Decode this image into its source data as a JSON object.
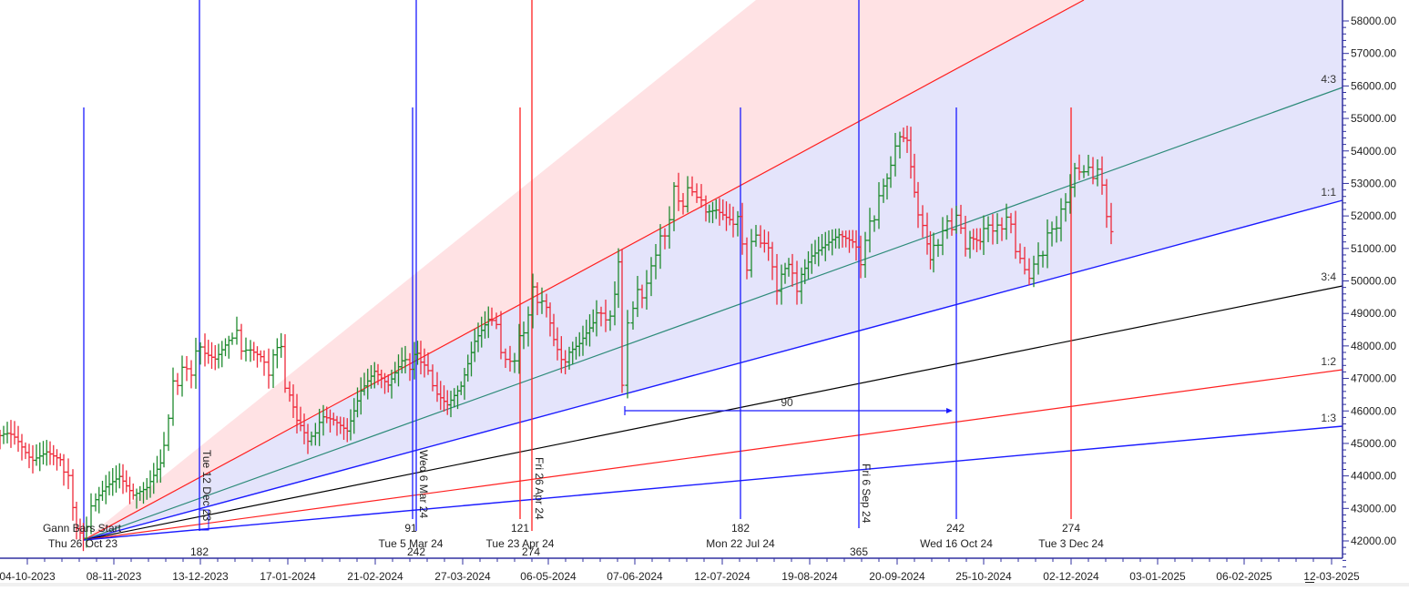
{
  "chart_data": {
    "type": "bar",
    "subtype": "ohlc-with-gann-fan",
    "title": "",
    "xlabel": "",
    "ylabel": "",
    "ylim": [
      41500,
      59000
    ],
    "grid": false,
    "y_ticks": [
      "58000.00",
      "57000.00",
      "56000.00",
      "55000.00",
      "54000.00",
      "53000.00",
      "52000.00",
      "51000.00",
      "50000.00",
      "49000.00",
      "48000.00",
      "47000.00",
      "46000.00",
      "45000.00",
      "44000.00",
      "43000.00",
      "42000.00"
    ],
    "x_ticks": [
      "04-10-2023",
      "08-11-2023",
      "13-12-2023",
      "17-01-2024",
      "21-02-2024",
      "27-03-2024",
      "06-05-2024",
      "07-06-2024",
      "12-07-2024",
      "19-08-2024",
      "20-09-2024",
      "25-10-2024",
      "02-12-2024",
      "03-01-2025",
      "06-02-2025",
      "12-03-2025"
    ],
    "gann_fan": {
      "origin_label": "Gann Bars Start",
      "origin_date": "Thu 26 Oct 23",
      "lines": [
        {
          "ratio": "4:3",
          "color": "#2e8b7a",
          "end_value": 56000
        },
        {
          "ratio": "1:1",
          "color": "#1a1aff",
          "end_value": 52450
        },
        {
          "ratio": "3:4",
          "color": "#000000",
          "end_value": 49850
        },
        {
          "ratio": "1:2",
          "color": "#ff2020",
          "end_value": 47250
        },
        {
          "ratio": "1:3",
          "color": "#1a1aff",
          "end_value": 45500
        }
      ],
      "upper_line": {
        "color": "#ff2020"
      }
    },
    "time_cycles": [
      {
        "label": "Tue 12 Dec 23",
        "bars": "",
        "color": "#1a1aff",
        "orientation": "vertical"
      },
      {
        "label": "Tue 5 Mar 24",
        "bars": "91",
        "color": "#1a1aff"
      },
      {
        "label": "Wed 6 Mar 24",
        "bars": "",
        "color": "#1a1aff",
        "orientation": "vertical"
      },
      {
        "label": "Tue 23 Apr 24",
        "bars": "121",
        "color": "#ff2020"
      },
      {
        "label": "Fri 26 Apr 24",
        "bars": "",
        "color": "#ff2020",
        "orientation": "vertical"
      },
      {
        "label": "Mon 22 Jul 24",
        "bars": "182",
        "color": "#1a1aff"
      },
      {
        "label": "Fri 6 Sep 24",
        "bars": "",
        "color": "#1a1aff",
        "orientation": "vertical"
      },
      {
        "label": "Wed 16 Oct 24",
        "bars": "242",
        "color": "#1a1aff"
      },
      {
        "label": "Tue 3 Dec 24",
        "bars": "274",
        "color": "#ff2020"
      }
    ],
    "calendar_counts": [
      "182",
      "242",
      "274",
      "365"
    ],
    "annotation": {
      "label": "90",
      "type": "horizontal-arrow"
    },
    "series": [
      {
        "name": "OHLC",
        "approx_range": [
          42200,
          54400
        ],
        "last_close_approx": 51400
      }
    ]
  },
  "labels": {
    "gann_start": "Gann Bars Start",
    "gann_start_date": "Thu 26 Oct 23",
    "ratio_4_3": "4:3",
    "ratio_1_1": "1:1",
    "ratio_3_4": "3:4",
    "ratio_1_2": "1:2",
    "ratio_1_3": "1:3",
    "v_dec12": "Tue 12 Dec 23",
    "v_mar6": "Wed 6 Mar 24",
    "v_apr26": "Fri 26 Apr 24",
    "v_sep6": "Fri 6 Sep 24",
    "n91": "91",
    "n121": "121",
    "n182": "182",
    "n242": "242",
    "n274": "274",
    "d_mar5": "Tue 5 Mar 24",
    "d_apr23": "Tue 23 Apr 24",
    "d_jul22": "Mon 22 Jul 24",
    "d_oct16": "Wed 16 Oct 24",
    "d_dec3": "Tue 3 Dec 24",
    "c182": "182",
    "c242": "242",
    "c274": "274",
    "c365": "365",
    "arrow90": "90"
  }
}
